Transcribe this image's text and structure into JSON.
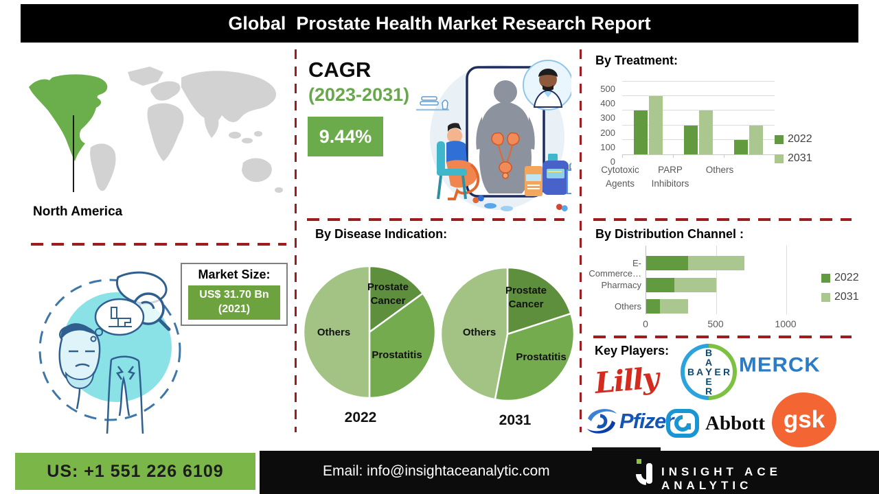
{
  "banner": {
    "title": "Global  Prostate Health Market Research Report"
  },
  "map": {
    "highlighted_region": "North America",
    "highlight_color": "#6aaf4b",
    "land_color": "#d2d2d2"
  },
  "cagr": {
    "heading": "CAGR",
    "period": "(2023-2031)",
    "value": "9.44%"
  },
  "market_size": {
    "label": "Market Size:",
    "value_line1": "US$ 31.70 Bn",
    "value_line2": "(2021)"
  },
  "chart_data": [
    {
      "type": "bar",
      "title": "By Treatment:",
      "categories": [
        "Cytotoxic Agents",
        "PARP Inhibitors",
        "Others"
      ],
      "series": [
        {
          "name": "2022",
          "values": [
            300,
            200,
            100
          ],
          "color": "#619a3f"
        },
        {
          "name": "2031",
          "values": [
            400,
            300,
            200
          ],
          "color": "#a9c78e"
        }
      ],
      "ylim": [
        0,
        500
      ],
      "yticks": [
        0,
        100,
        200,
        300,
        400,
        500
      ],
      "grid": true,
      "legend_position": "right"
    },
    {
      "type": "pie",
      "year": "2022",
      "title": "By Disease Indication:",
      "labels": [
        "Prostate Cancer",
        "Prostatitis",
        "Others"
      ],
      "values": [
        15,
        35,
        50
      ],
      "colors": [
        "#5d8f3d",
        "#74ab4e",
        "#a2c383"
      ]
    },
    {
      "type": "pie",
      "year": "2031",
      "title": "By Disease Indication:",
      "labels": [
        "Prostate Cancer",
        "Prostatitis",
        "Others"
      ],
      "values": [
        20,
        33,
        47
      ],
      "colors": [
        "#5d8f3d",
        "#74ab4e",
        "#a2c383"
      ]
    },
    {
      "type": "bar-horizontal-stacked",
      "title": "By Distribution Channel :",
      "categories": [
        "E-Commerce…",
        "Pharmacy",
        "Others"
      ],
      "series": [
        {
          "name": "2022",
          "values": [
            300,
            200,
            100
          ],
          "color": "#619a3f"
        },
        {
          "name": "2031",
          "values": [
            400,
            300,
            200
          ],
          "color": "#a9c78e"
        }
      ],
      "xlim": [
        0,
        1000
      ],
      "xticks": [
        0,
        500,
        1000
      ],
      "grid": true,
      "legend_position": "right"
    }
  ],
  "key_players": {
    "label": "Key Players:",
    "items": [
      "Lilly",
      "BAYER",
      "MERCK",
      "Pfizer",
      "Abbott",
      "gsk"
    ]
  },
  "footer": {
    "phone": "US: +1 551 226 6109",
    "email": "Email: info@insightaceanalytic.com",
    "brand": "INSIGHT ACE ANALYTIC"
  },
  "colors": {
    "series_2022": "#619a3f",
    "series_2031": "#a9c78e",
    "dashed_divider_red": "#9e1b1e",
    "cagr_green": "#6cab4c",
    "market_size_green": "#6da33e",
    "footer_green": "#7ab648",
    "banner_black": "#000000"
  }
}
